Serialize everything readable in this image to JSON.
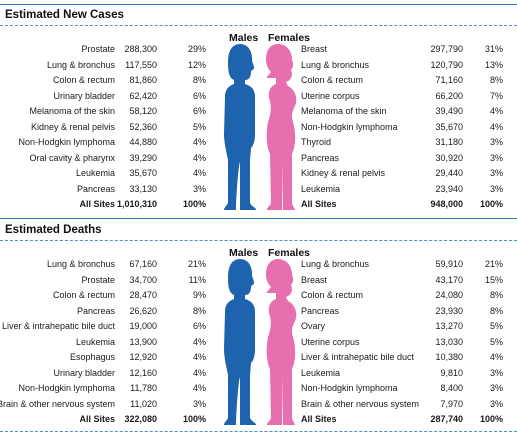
{
  "colors": {
    "rule": "#2f78b8",
    "male_figure": "#1d63ad",
    "female_figure": "#e76fb0"
  },
  "new_cases": {
    "title": "Estimated New Cases",
    "males_label": "Males",
    "females_label": "Females",
    "males": [
      {
        "site": "Prostate",
        "count": "288,300",
        "pct": "29%"
      },
      {
        "site": "Lung & bronchus",
        "count": "117,550",
        "pct": "12%"
      },
      {
        "site": "Colon & rectum",
        "count": "81,860",
        "pct": "8%"
      },
      {
        "site": "Urinary bladder",
        "count": "62,420",
        "pct": "6%"
      },
      {
        "site": "Melanoma of the skin",
        "count": "58,120",
        "pct": "6%"
      },
      {
        "site": "Kidney & renal pelvis",
        "count": "52,360",
        "pct": "5%"
      },
      {
        "site": "Non-Hodgkin lymphoma",
        "count": "44,880",
        "pct": "4%"
      },
      {
        "site": "Oral cavity & pharynx",
        "count": "39,290",
        "pct": "4%"
      },
      {
        "site": "Leukemia",
        "count": "35,670",
        "pct": "4%"
      },
      {
        "site": "Pancreas",
        "count": "33,130",
        "pct": "3%"
      }
    ],
    "males_total": {
      "site": "All Sites",
      "count": "1,010,310",
      "pct": "100%"
    },
    "females": [
      {
        "site": "Breast",
        "count": "297,790",
        "pct": "31%"
      },
      {
        "site": "Lung & bronchus",
        "count": "120,790",
        "pct": "13%"
      },
      {
        "site": "Colon & rectum",
        "count": "71,160",
        "pct": "8%"
      },
      {
        "site": "Uterine corpus",
        "count": "66,200",
        "pct": "7%"
      },
      {
        "site": "Melanoma of the skin",
        "count": "39,490",
        "pct": "4%"
      },
      {
        "site": "Non-Hodgkin lymphoma",
        "count": "35,670",
        "pct": "4%"
      },
      {
        "site": "Thyroid",
        "count": "31,180",
        "pct": "3%"
      },
      {
        "site": "Pancreas",
        "count": "30,920",
        "pct": "3%"
      },
      {
        "site": "Kidney & renal pelvis",
        "count": "29,440",
        "pct": "3%"
      },
      {
        "site": "Leukemia",
        "count": "23,940",
        "pct": "3%"
      }
    ],
    "females_total": {
      "site": "All Sites",
      "count": "948,000",
      "pct": "100%"
    }
  },
  "deaths": {
    "title": "Estimated Deaths",
    "males_label": "Males",
    "females_label": "Females",
    "males": [
      {
        "site": "Lung & bronchus",
        "count": "67,160",
        "pct": "21%"
      },
      {
        "site": "Prostate",
        "count": "34,700",
        "pct": "11%"
      },
      {
        "site": "Colon & rectum",
        "count": "28,470",
        "pct": "9%"
      },
      {
        "site": "Pancreas",
        "count": "26,620",
        "pct": "8%"
      },
      {
        "site": "Liver & intrahepatic bile duct",
        "count": "19,000",
        "pct": "6%"
      },
      {
        "site": "Leukemia",
        "count": "13,900",
        "pct": "4%"
      },
      {
        "site": "Esophagus",
        "count": "12,920",
        "pct": "4%"
      },
      {
        "site": "Urinary bladder",
        "count": "12,160",
        "pct": "4%"
      },
      {
        "site": "Non-Hodgkin lymphoma",
        "count": "11,780",
        "pct": "4%"
      },
      {
        "site": "Brain & other nervous system",
        "count": "11,020",
        "pct": "3%"
      }
    ],
    "males_total": {
      "site": "All Sites",
      "count": "322,080",
      "pct": "100%"
    },
    "females": [
      {
        "site": "Lung & bronchus",
        "count": "59,910",
        "pct": "21%"
      },
      {
        "site": "Breast",
        "count": "43,170",
        "pct": "15%"
      },
      {
        "site": "Colon & rectum",
        "count": "24,080",
        "pct": "8%"
      },
      {
        "site": "Pancreas",
        "count": "23,930",
        "pct": "8%"
      },
      {
        "site": "Ovary",
        "count": "13,270",
        "pct": "5%"
      },
      {
        "site": "Uterine corpus",
        "count": "13,030",
        "pct": "5%"
      },
      {
        "site": "Liver & intrahepatic bile duct",
        "count": "10,380",
        "pct": "4%"
      },
      {
        "site": "Leukemia",
        "count": "9,810",
        "pct": "3%"
      },
      {
        "site": "Non-Hodgkin lymphoma",
        "count": "8,400",
        "pct": "3%"
      },
      {
        "site": "Brain & other nervous system",
        "count": "7,970",
        "pct": "3%"
      }
    ],
    "females_total": {
      "site": "All Sites",
      "count": "287,740",
      "pct": "100%"
    }
  }
}
